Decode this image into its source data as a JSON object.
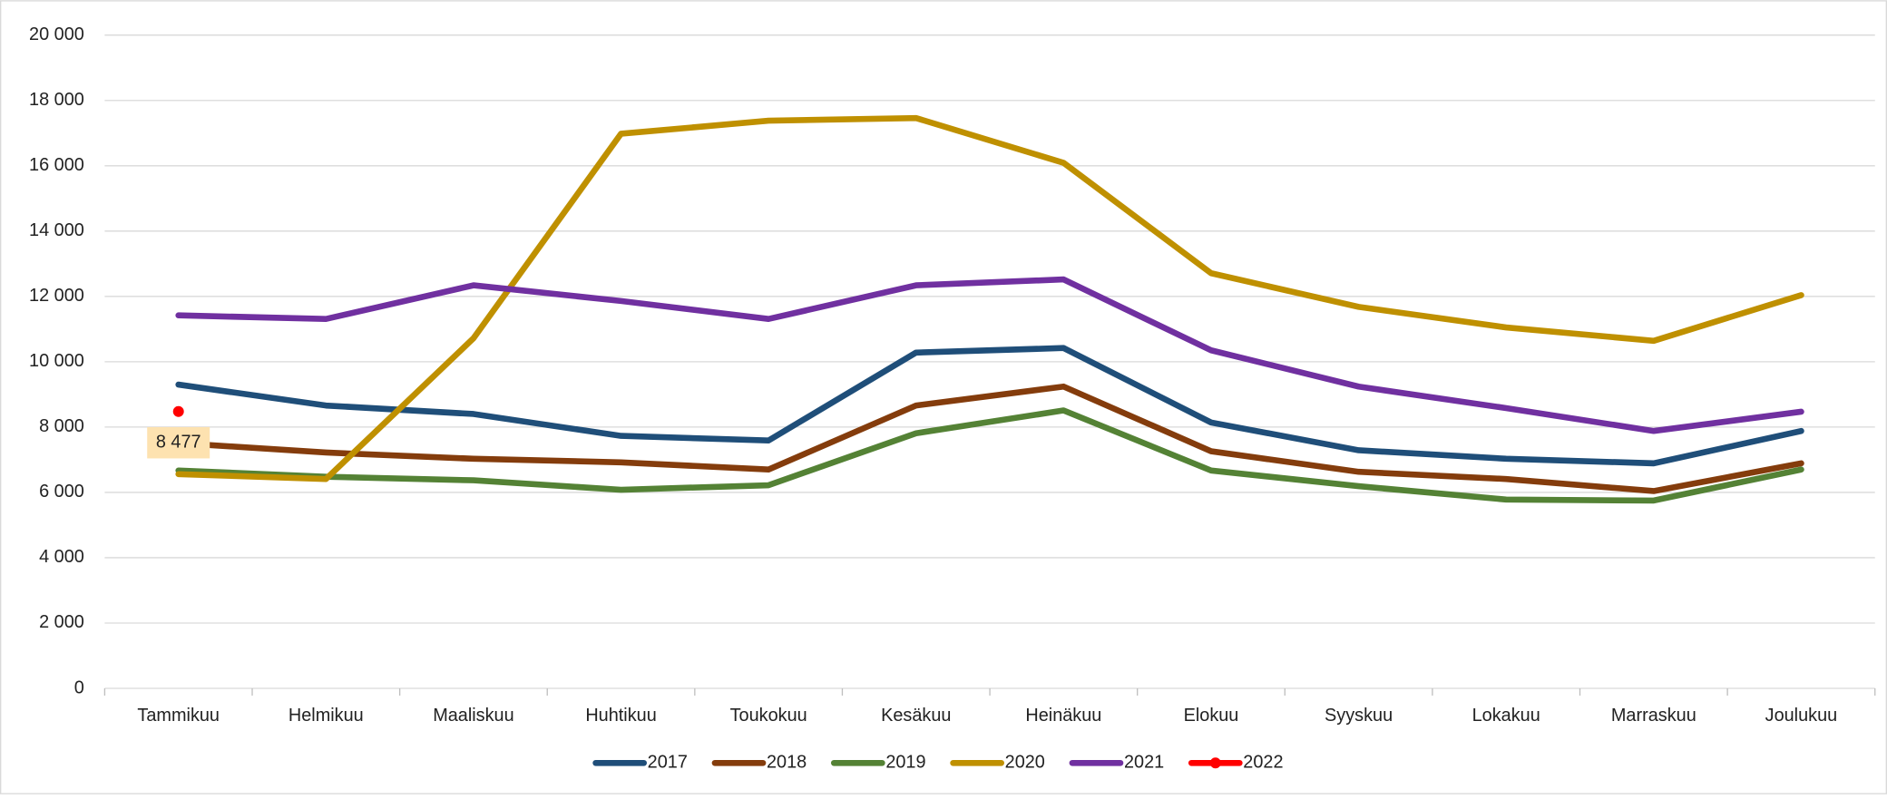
{
  "chart_data": {
    "type": "line",
    "categories": [
      "Tammikuu",
      "Helmikuu",
      "Maaliskuu",
      "Huhtikuu",
      "Toukokuu",
      "Kesäkuu",
      "Heinäkuu",
      "Elokuu",
      "Syyskuu",
      "Lokakuu",
      "Marraskuu",
      "Joulukuu"
    ],
    "series": [
      {
        "name": "2017",
        "color": "#1f4e79",
        "values": [
          9300,
          8660,
          8400,
          7730,
          7590,
          10280,
          10420,
          8140,
          7290,
          7030,
          6890,
          7880
        ]
      },
      {
        "name": "2018",
        "color": "#843c0c",
        "values": [
          7510,
          7220,
          7030,
          6920,
          6700,
          8660,
          9240,
          7260,
          6630,
          6410,
          6040,
          6890
        ]
      },
      {
        "name": "2019",
        "color": "#548235",
        "values": [
          6670,
          6480,
          6370,
          6080,
          6220,
          7810,
          8510,
          6670,
          6190,
          5780,
          5750,
          6700
        ]
      },
      {
        "name": "2020",
        "color": "#bf9000",
        "values": [
          6560,
          6410,
          10720,
          16980,
          17380,
          17460,
          16090,
          12710,
          11680,
          11050,
          10640,
          12040
        ]
      },
      {
        "name": "2021",
        "color": "#7030a0",
        "values": [
          11420,
          11310,
          12340,
          11860,
          11310,
          12340,
          12520,
          10350,
          9240,
          8580,
          7880,
          8470
        ]
      },
      {
        "name": "2022",
        "color": "#ff0000",
        "marker": true,
        "values": [
          8477,
          null,
          null,
          null,
          null,
          null,
          null,
          null,
          null,
          null,
          null,
          null
        ],
        "value_labels": [
          "8 477",
          null,
          null,
          null,
          null,
          null,
          null,
          null,
          null,
          null,
          null,
          null
        ]
      }
    ],
    "ylim": [
      0,
      20000
    ],
    "yticks": [
      0,
      {
        "value": 2000,
        "label": "2 000"
      },
      {
        "value": 4000,
        "label": "4 000"
      },
      {
        "value": 6000,
        "label": "6 000"
      },
      {
        "value": 8000,
        "label": "8 000"
      },
      {
        "value": 10000,
        "label": "10 000"
      },
      {
        "value": 12000,
        "label": "12 000"
      },
      {
        "value": 14000,
        "label": "14 000"
      },
      {
        "value": 16000,
        "label": "16 000"
      },
      {
        "value": 18000,
        "label": "18 000"
      },
      {
        "value": 20000,
        "label": "20 000"
      }
    ],
    "grid": true,
    "legend": "bottom"
  }
}
